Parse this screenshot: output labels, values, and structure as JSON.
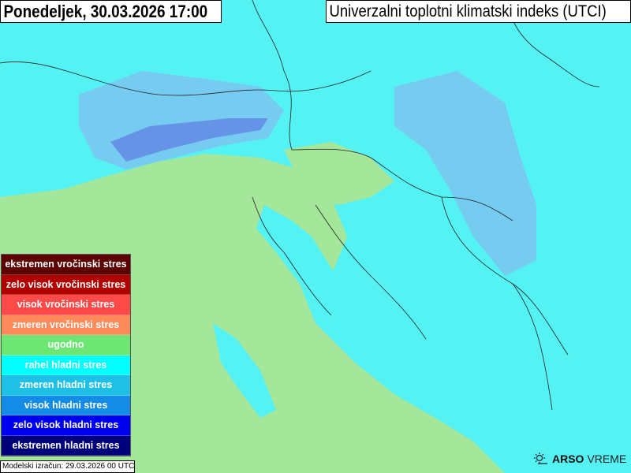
{
  "header": {
    "datetime": "Ponedeljek, 30.03.2026 17:00",
    "product_title": "Univerzalni toplotni klimatski indeks (UTCI)"
  },
  "legend": {
    "items": [
      {
        "label": "ekstremen vročinski stres",
        "color": "#5c0000"
      },
      {
        "label": "zelo visok vročinski stres",
        "color": "#b00000"
      },
      {
        "label": "visok vročinski stres",
        "color": "#ff4a4a"
      },
      {
        "label": "zmeren vročinski stres",
        "color": "#ff8a5a"
      },
      {
        "label": "ugodno",
        "color": "#6ee674"
      },
      {
        "label": "rahel hladni stres",
        "color": "#00ffff"
      },
      {
        "label": "zmeren hladni stres",
        "color": "#1ec0e6"
      },
      {
        "label": "visok hladni stres",
        "color": "#128ce6"
      },
      {
        "label": "zelo visok hladni stres",
        "color": "#0000f0"
      },
      {
        "label": "ekstremen hladni stres",
        "color": "#00007a"
      }
    ]
  },
  "footer": {
    "model_run": "Modelski izračun: 29.03.2026 00 UTC",
    "brand_bold": "ARSO",
    "brand_light": "VREME"
  },
  "map_colors": {
    "comfortable": "#a4e69a",
    "slight_cold": "#55f2f4",
    "moderate_cold": "#7cc4ee",
    "strong_cold": "#5a70e0"
  }
}
